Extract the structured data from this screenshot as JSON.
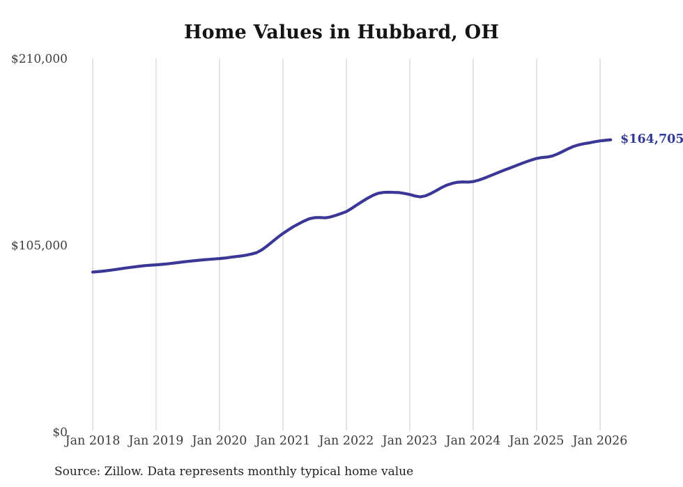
{
  "title": "Home Values in Hubbard, OH",
  "source_note": "Source: Zillow. Data represents monthly typical home value",
  "end_label": "$164,705",
  "colors": {
    "background": "#ffffff",
    "line": "#3b3796",
    "end_label": "#333a94",
    "grid": "#c9c9c9",
    "title_text": "#141414",
    "axis_text": "#3c3c3c",
    "source_text": "#1f1f1f"
  },
  "chart_data": {
    "type": "line",
    "title": "Home Values in Hubbard, OH",
    "xlabel": "",
    "ylabel": "",
    "ylim": [
      0,
      210000
    ],
    "y_tick_labels": [
      "$0",
      "$105,000",
      "$210,000"
    ],
    "y_tick_values": [
      0,
      105000,
      210000
    ],
    "x_tick_labels": [
      "Jan 2018",
      "Jan 2019",
      "Jan 2020",
      "Jan 2021",
      "Jan 2022",
      "Jan 2023",
      "Jan 2024",
      "Jan 2025",
      "Jan 2026"
    ],
    "grid": "vertical-only",
    "legend": "none",
    "x_start": "2018-01",
    "x_interval": "month",
    "series": [
      {
        "name": "Typical home value (USD)",
        "values": [
          90300,
          90550,
          90850,
          91200,
          91600,
          92050,
          92500,
          92900,
          93300,
          93650,
          93950,
          94200,
          94400,
          94620,
          94900,
          95230,
          95600,
          95980,
          96300,
          96620,
          96920,
          97200,
          97450,
          97680,
          97900,
          98200,
          98600,
          99000,
          99300,
          99800,
          100400,
          101200,
          102800,
          105000,
          107400,
          109800,
          112000,
          114000,
          115900,
          117500,
          119000,
          120300,
          120900,
          121000,
          120800,
          121300,
          122200,
          123200,
          124300,
          126100,
          128100,
          130000,
          131800,
          133400,
          134600,
          135100,
          135200,
          135100,
          135000,
          134500,
          133900,
          133100,
          132600,
          133200,
          134500,
          136100,
          137800,
          139200,
          140200,
          140800,
          141000,
          140900,
          141200,
          142000,
          143000,
          144200,
          145400,
          146600,
          147800,
          148900,
          150000,
          151200,
          152300,
          153300,
          154200,
          154700,
          155000,
          155600,
          156800,
          158200,
          159700,
          161000,
          161900,
          162500,
          163000,
          163600,
          164100,
          164400,
          164705
        ]
      }
    ],
    "last_point": {
      "x": "2026-03",
      "value": 164705,
      "label": "$164,705"
    }
  }
}
